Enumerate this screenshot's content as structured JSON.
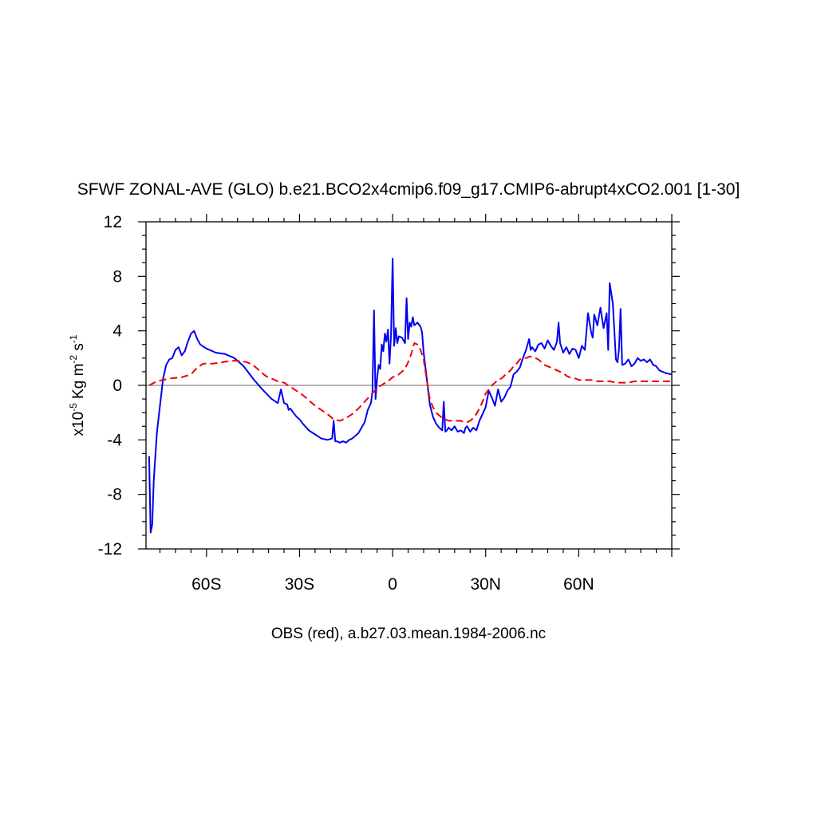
{
  "chart_data": {
    "type": "line",
    "title": "SFWF ZONAL-AVE (GLO) b.e21.BCO2x4cmip6.f09_g17.CMIP6-abrupt4xCO2.001 [1-30]",
    "xlabel": "OBS (red), a.b27.03.mean.1984-2006.nc",
    "ylabel": {
      "prefix": "x10",
      "exp": "-5",
      "mid": " Kg m",
      "exp2": "-2",
      "suffix": " s",
      "exp3": "-1"
    },
    "xlim": [
      -79.5,
      90
    ],
    "ylim": [
      -12,
      12
    ],
    "x_ticks": [
      {
        "value": -60,
        "label": "60S"
      },
      {
        "value": -30,
        "label": "30S"
      },
      {
        "value": 0,
        "label": "0"
      },
      {
        "value": 30,
        "label": "30N"
      },
      {
        "value": 60,
        "label": "60N"
      }
    ],
    "y_ticks": [
      {
        "value": 12,
        "label": "12"
      },
      {
        "value": 8,
        "label": "8"
      },
      {
        "value": 4,
        "label": "4"
      },
      {
        "value": 0,
        "label": "0"
      },
      {
        "value": -4,
        "label": "-4"
      },
      {
        "value": -8,
        "label": "-8"
      },
      {
        "value": -12,
        "label": "-12"
      }
    ],
    "zero_line": true,
    "series": [
      {
        "color": "#0000ee",
        "dash": "solid",
        "x": [
          -78.5,
          -78,
          -77.5,
          -77,
          -76,
          -75,
          -74,
          -73,
          -72,
          -71,
          -70,
          -69,
          -68,
          -67,
          -66,
          -65,
          -64,
          -63,
          -62,
          -60,
          -57,
          -54,
          -51,
          -48,
          -45,
          -42,
          -39,
          -37,
          -36,
          -35,
          -34,
          -33.5,
          -33,
          -32,
          -31,
          -30,
          -29,
          -27,
          -25,
          -23,
          -21,
          -19.5,
          -19,
          -18.5,
          -18,
          -17,
          -16,
          -15,
          -14,
          -13,
          -11,
          -9,
          -8,
          -7,
          -6.5,
          -6,
          -5.5,
          -5,
          -4.5,
          -4,
          -3.5,
          -3,
          -2.5,
          -2,
          -1.5,
          -1,
          -0.5,
          0,
          0.5,
          1,
          1.5,
          2,
          3,
          4,
          4.5,
          5,
          5.5,
          6,
          6.5,
          7,
          8,
          9,
          9.5,
          10,
          11,
          12,
          13,
          14,
          15,
          16,
          16.5,
          17,
          17.5,
          18,
          19,
          20,
          21,
          22,
          23,
          23.5,
          24,
          25,
          26,
          27,
          28,
          29,
          30,
          31,
          32,
          33,
          34,
          35,
          36,
          37,
          38,
          39,
          40,
          41,
          42,
          43,
          44,
          44.5,
          45,
          46,
          47,
          48,
          49,
          50,
          51,
          52,
          53,
          53.5,
          54,
          55,
          56,
          57,
          58,
          59,
          60,
          61,
          62,
          63,
          64,
          64.5,
          65,
          66,
          67,
          68,
          69,
          69.5,
          70,
          71,
          72,
          72.5,
          73,
          73.5,
          74,
          75,
          76,
          77,
          78,
          79,
          80,
          81,
          82,
          83,
          84,
          85,
          86,
          88,
          90
        ],
        "y": [
          -5.2,
          -10.8,
          -10.2,
          -7,
          -3.5,
          -1.5,
          0.5,
          1.5,
          1.9,
          2,
          2.6,
          2.8,
          2.2,
          2.5,
          3.2,
          3.8,
          4,
          3.4,
          3,
          2.7,
          2.4,
          2.3,
          2,
          1.4,
          0.5,
          -0.3,
          -1,
          -1.3,
          -0.3,
          -1.3,
          -1.4,
          -1.8,
          -1.7,
          -2,
          -2.3,
          -2.5,
          -2.8,
          -3.3,
          -3.6,
          -3.9,
          -4,
          -3.9,
          -2.6,
          -4.1,
          -4.1,
          -4.2,
          -4.1,
          -4.2,
          -4,
          -3.9,
          -3.5,
          -2.7,
          -1.8,
          -1.3,
          -0.5,
          5.5,
          -1,
          0.5,
          1.5,
          1.2,
          3,
          2.5,
          3.8,
          3.2,
          4.1,
          1.6,
          3.7,
          9.3,
          2.9,
          4.2,
          3.1,
          3.6,
          3.5,
          3.1,
          6.4,
          3.4,
          4.6,
          4.3,
          5,
          4.4,
          4.6,
          4.3,
          3.9,
          2.4,
          0.5,
          -1.4,
          -2.3,
          -2.8,
          -3.1,
          -3.3,
          -1.2,
          -3.4,
          -3.3,
          -3.1,
          -3.3,
          -3,
          -3.4,
          -3.3,
          -3.5,
          -3.1,
          -3,
          -3.4,
          -3.1,
          -3.3,
          -2.6,
          -2.1,
          -1.6,
          -0.4,
          -0.9,
          -1.5,
          -0.3,
          -1.2,
          -0.9,
          -0.4,
          -0.1,
          0.8,
          1,
          1.3,
          2,
          2.6,
          3.4,
          2.6,
          2.8,
          2.5,
          3,
          3.1,
          2.7,
          3.3,
          2.9,
          2.6,
          3.2,
          4.6,
          3.1,
          2.4,
          2.8,
          2.3,
          2.7,
          2.6,
          2,
          2.9,
          2.6,
          5.3,
          3.9,
          3.5,
          5.2,
          4.4,
          5.7,
          4.2,
          5.3,
          2.6,
          7.5,
          6,
          1.9,
          1.7,
          2.7,
          5.6,
          1.5,
          1.6,
          1.9,
          1.4,
          1.6,
          2,
          1.8,
          1.9,
          1.7,
          1.9,
          1.5,
          1.4,
          1.1,
          0.9,
          0.8
        ]
      },
      {
        "color": "#ee0000",
        "dash": "dashed",
        "x": [
          -78.5,
          -76,
          -72,
          -68,
          -65,
          -63,
          -61,
          -58,
          -55,
          -52,
          -49,
          -47,
          -45,
          -43,
          -41,
          -39,
          -37,
          -35,
          -33,
          -31,
          -29,
          -27,
          -25,
          -23,
          -21,
          -19,
          -17,
          -15,
          -13,
          -11,
          -9,
          -7,
          -5,
          -3,
          -1,
          0,
          1,
          2,
          3,
          4,
          5,
          6,
          7,
          8,
          9,
          10,
          11,
          12,
          13,
          14,
          15,
          16,
          17,
          18,
          19,
          20,
          21,
          22,
          23,
          24,
          25,
          26,
          27,
          28,
          29,
          30,
          31,
          32,
          33,
          34,
          35,
          36,
          37,
          38,
          39,
          40,
          41,
          42,
          43,
          44,
          45,
          46,
          47,
          48,
          49,
          50,
          51,
          52,
          53,
          54,
          55,
          56,
          57,
          58,
          59,
          60,
          62,
          64,
          66,
          68,
          70,
          72,
          74,
          76,
          78,
          80,
          82,
          84,
          86,
          88,
          90
        ],
        "y": [
          0,
          0.3,
          0.5,
          0.6,
          0.8,
          1.3,
          1.6,
          1.6,
          1.7,
          1.8,
          1.8,
          1.7,
          1.5,
          1.1,
          0.7,
          0.5,
          0.3,
          0.2,
          -0.1,
          -0.4,
          -0.7,
          -1.1,
          -1.5,
          -1.8,
          -2.1,
          -2.5,
          -2.6,
          -2.4,
          -2.1,
          -1.7,
          -1.2,
          -0.7,
          -0.2,
          0.1,
          0.4,
          0.6,
          0.7,
          0.8,
          1,
          1.2,
          1.7,
          2.3,
          3.1,
          3,
          2.6,
          1.9,
          0.4,
          -1,
          -1.6,
          -2,
          -2.2,
          -2.4,
          -2.5,
          -2.6,
          -2.6,
          -2.6,
          -2.6,
          -2.6,
          -2.7,
          -2.7,
          -2.6,
          -2.4,
          -2.1,
          -1.7,
          -1.2,
          -0.6,
          -0.3,
          0,
          0.2,
          0.4,
          0.5,
          0.7,
          0.9,
          1.1,
          1.4,
          1.6,
          1.9,
          2,
          2,
          2.1,
          2.1,
          2,
          1.9,
          1.7,
          1.5,
          1.4,
          1.3,
          1.2,
          1.1,
          1.0,
          0.9,
          0.7,
          0.6,
          0.5,
          0.5,
          0.4,
          0.4,
          0.4,
          0.3,
          0.3,
          0.3,
          0.2,
          0.2,
          0.2,
          0.3,
          0.3,
          0.3,
          0.3,
          0.3,
          0.3,
          0.3
        ]
      }
    ]
  }
}
